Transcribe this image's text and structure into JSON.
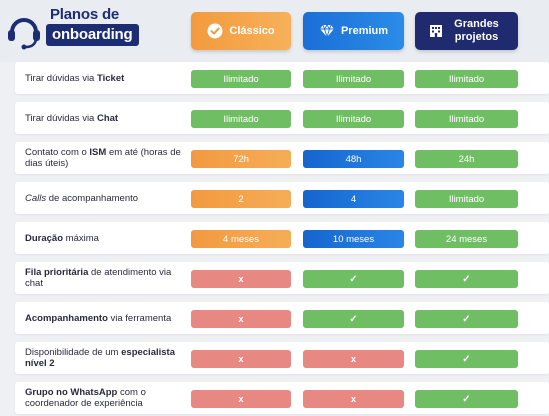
{
  "header": {
    "title_line1": "Planos de",
    "title_line2": "onboarding",
    "icon": "headset-icon"
  },
  "plans": [
    {
      "name": "Clássico",
      "icon": "check-circle-icon",
      "color": "#f39a3d"
    },
    {
      "name": "Premium",
      "icon": "diamond-icon",
      "color": "#1a6fd6"
    },
    {
      "name": "Grandes projetos",
      "icon": "building-icon",
      "color": "#1f2b6e"
    }
  ],
  "rows": [
    {
      "label_pre": "Tirar dúvidas via ",
      "label_bold": "Ticket",
      "label_post": "",
      "classico": "Ilimitado",
      "premium": "Ilimitado",
      "grandes": "Ilimitado"
    },
    {
      "label_pre": "Tirar dúvidas via ",
      "label_bold": "Chat",
      "label_post": "",
      "classico": "Ilimitado",
      "premium": "Ilimitado",
      "grandes": "Ilimitado"
    },
    {
      "label_pre": "Contato com o ",
      "label_bold": "ISM",
      "label_post": " em até (horas de dias úteis)",
      "classico": "72h",
      "premium": "48h",
      "grandes": "24h"
    },
    {
      "label_pre": "",
      "label_bold": "Calls",
      "label_post": " de acompanhamento",
      "classico": "2",
      "premium": "4",
      "grandes": "Ilimitado"
    },
    {
      "label_pre": "",
      "label_bold": "Duração",
      "label_post": " máxima",
      "classico": "4 meses",
      "premium": "10 meses",
      "grandes": "24 meses"
    },
    {
      "label_pre": "",
      "label_bold": "Fila prioritária",
      "label_post": " de atendimento via chat",
      "classico": "x",
      "premium": "✓",
      "grandes": "✓"
    },
    {
      "label_pre": "",
      "label_bold": "Acompanhamento",
      "label_post": " via ferramenta",
      "classico": "x",
      "premium": "✓",
      "grandes": "✓"
    },
    {
      "label_pre": "Disponibilidade de um ",
      "label_bold": "especialista nível 2",
      "label_post": "",
      "classico": "x",
      "premium": "x",
      "grandes": "✓"
    },
    {
      "label_pre": "",
      "label_bold": "Grupo no WhatsApp",
      "label_post": " com o coordenador de experiência",
      "classico": "x",
      "premium": "x",
      "grandes": "✓"
    }
  ],
  "colors": {
    "green": "#6fbe63",
    "orange": "#f39a3d",
    "blue": "#1a6fd6",
    "red": "#e88883",
    "navy": "#1c2d73"
  }
}
